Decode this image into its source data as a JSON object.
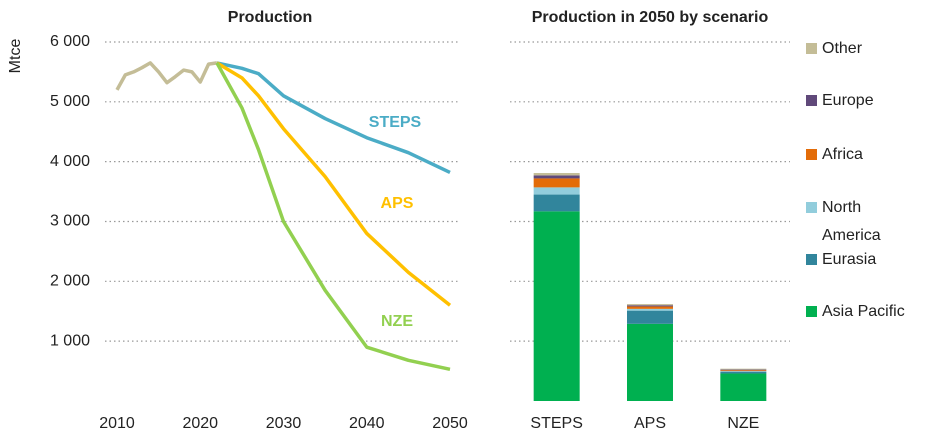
{
  "chart_data": [
    {
      "type": "line",
      "title": "Production",
      "ylabel": "Mtce",
      "x": [
        2010,
        2011,
        2012,
        2013,
        2014,
        2015,
        2016,
        2017,
        2018,
        2019,
        2020,
        2021,
        2022,
        2025,
        2027,
        2030,
        2035,
        2040,
        2045,
        2050
      ],
      "series": [
        {
          "color": "#c4bd97",
          "values": [
            5200,
            5450,
            5500,
            5570,
            5650,
            5500,
            5320,
            5420,
            5530,
            5500,
            5330,
            5630,
            5650,
            null,
            null,
            null,
            null,
            null,
            null,
            null
          ]
        },
        {
          "name": "STEPS",
          "color": "#4bacc6",
          "values": [
            null,
            null,
            null,
            null,
            null,
            null,
            null,
            null,
            null,
            null,
            null,
            null,
            5650,
            5560,
            5470,
            5100,
            4720,
            4400,
            4150,
            3820
          ]
        },
        {
          "name": "APS",
          "color": "#ffc000",
          "values": [
            null,
            null,
            null,
            null,
            null,
            null,
            null,
            null,
            null,
            null,
            null,
            null,
            5650,
            5400,
            5100,
            4550,
            3750,
            2800,
            2150,
            1600
          ]
        },
        {
          "name": "NZE",
          "color": "#92d050",
          "values": [
            null,
            null,
            null,
            null,
            null,
            null,
            null,
            null,
            null,
            null,
            null,
            null,
            5650,
            4900,
            4200,
            3000,
            1850,
            900,
            680,
            530
          ]
        }
      ],
      "xlim": [
        2010,
        2050
      ],
      "xticks": [
        2010,
        2020,
        2030,
        2040,
        2050
      ],
      "ylim": [
        0,
        6200
      ],
      "yticks": [
        {
          "value": 1000,
          "label": "1 000"
        },
        {
          "value": 2000,
          "label": "2 000"
        },
        {
          "value": 3000,
          "label": "3 000"
        },
        {
          "value": 4000,
          "label": "4 000"
        },
        {
          "value": 5000,
          "label": "5 000"
        },
        {
          "value": 6000,
          "label": "6 000"
        }
      ],
      "grid": true
    },
    {
      "type": "stacked_bar",
      "title": "Production in 2050 by scenario",
      "categories": [
        "STEPS",
        "APS",
        "NZE"
      ],
      "series": [
        {
          "name": "Asia Pacific",
          "color": "#00b050",
          "values": [
            3170,
            1290,
            460
          ]
        },
        {
          "name": "Eurasia",
          "color": "#31859c",
          "values": [
            280,
            220,
            30
          ]
        },
        {
          "name": "North America",
          "color": "#92cddc",
          "values": [
            120,
            30,
            10
          ]
        },
        {
          "name": "Africa",
          "color": "#e36c09",
          "values": [
            150,
            40,
            15
          ]
        },
        {
          "name": "Europe",
          "color": "#60497a",
          "values": [
            50,
            20,
            10
          ]
        },
        {
          "name": "Other",
          "color": "#c4bd97",
          "values": [
            40,
            20,
            15
          ]
        }
      ],
      "ylim": [
        0,
        6200
      ],
      "yticks": [
        1000,
        2000,
        3000,
        4000,
        5000,
        6000
      ],
      "grid": true,
      "legend": "right"
    }
  ]
}
